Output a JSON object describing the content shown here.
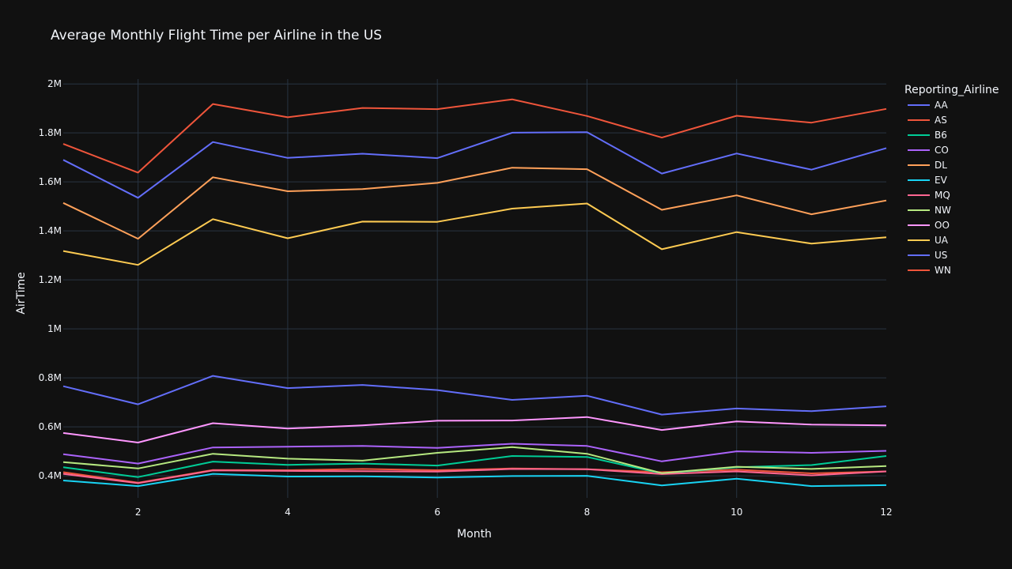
{
  "chart_data": {
    "type": "line",
    "title": "Average Monthly Flight Time per Airline in the US",
    "xlabel": "Month",
    "ylabel": "AirTime",
    "xlim": [
      1,
      12
    ],
    "ylim": [
      310000,
      2020000
    ],
    "x_ticks": [
      2,
      4,
      6,
      8,
      10,
      12
    ],
    "y_ticks": [
      {
        "value": 400000,
        "label": "0.4M"
      },
      {
        "value": 600000,
        "label": "0.6M"
      },
      {
        "value": 800000,
        "label": "0.8M"
      },
      {
        "value": 1000000,
        "label": "1M"
      },
      {
        "value": 1200000,
        "label": "1.2M"
      },
      {
        "value": 1400000,
        "label": "1.4M"
      },
      {
        "value": 1600000,
        "label": "1.6M"
      },
      {
        "value": 1800000,
        "label": "1.8M"
      },
      {
        "value": 2000000,
        "label": "2M"
      }
    ],
    "grid": true,
    "legend_title": "Reporting_Airline",
    "legend_position": "right",
    "x": [
      1,
      2,
      3,
      4,
      5,
      6,
      7,
      8,
      9,
      10,
      11,
      12
    ],
    "series": [
      {
        "name": "AA",
        "color": "#636efa",
        "values": [
          1690000,
          1535000,
          1763000,
          1698000,
          1715000,
          1697000,
          1801000,
          1803000,
          1634000,
          1716000,
          1650000,
          1738000
        ]
      },
      {
        "name": "AS",
        "color": "#EF553B",
        "values": [
          415000,
          372000,
          424000,
          423000,
          428000,
          423000,
          430000,
          427000,
          415000,
          425000,
          410000,
          418000
        ]
      },
      {
        "name": "B6",
        "color": "#00cc96",
        "values": [
          435000,
          395000,
          458000,
          445000,
          450000,
          442000,
          481000,
          477000,
          410000,
          435000,
          444000,
          481000
        ]
      },
      {
        "name": "CO",
        "color": "#ab63fa",
        "values": [
          488000,
          450000,
          516000,
          519000,
          522000,
          514000,
          531000,
          522000,
          459000,
          500000,
          494000,
          502000
        ]
      },
      {
        "name": "DL",
        "color": "#FFA15A",
        "values": [
          1514000,
          1368000,
          1619000,
          1562000,
          1571000,
          1596000,
          1658000,
          1652000,
          1486000,
          1545000,
          1468000,
          1524000
        ]
      },
      {
        "name": "EV",
        "color": "#19d3f3",
        "values": [
          381000,
          358000,
          408000,
          397000,
          398000,
          393000,
          399000,
          400000,
          361000,
          388000,
          358000,
          362000
        ]
      },
      {
        "name": "MQ",
        "color": "#FF6692",
        "values": [
          408000,
          370000,
          422000,
          420000,
          419000,
          417000,
          428000,
          427000,
          407000,
          418000,
          402000,
          418000
        ]
      },
      {
        "name": "NW",
        "color": "#B6E880",
        "values": [
          456000,
          430000,
          490000,
          470000,
          462000,
          494000,
          517000,
          490000,
          411000,
          437000,
          428000,
          440000
        ]
      },
      {
        "name": "OO",
        "color": "#FF97FF",
        "values": [
          575000,
          536000,
          615000,
          593000,
          606000,
          625000,
          626000,
          640000,
          587000,
          622000,
          609000,
          606000
        ]
      },
      {
        "name": "UA",
        "color": "#FECB52",
        "values": [
          1318000,
          1261000,
          1448000,
          1370000,
          1438000,
          1437000,
          1491000,
          1512000,
          1325000,
          1395000,
          1348000,
          1374000
        ]
      },
      {
        "name": "US",
        "color": "#636efa",
        "values": [
          766000,
          692000,
          808000,
          758000,
          771000,
          750000,
          710000,
          727000,
          650000,
          675000,
          664000,
          684000
        ]
      },
      {
        "name": "WN",
        "color": "#EF553B",
        "values": [
          1755000,
          1638000,
          1918000,
          1864000,
          1902000,
          1897000,
          1937000,
          1869000,
          1781000,
          1870000,
          1842000,
          1898000
        ]
      }
    ]
  }
}
